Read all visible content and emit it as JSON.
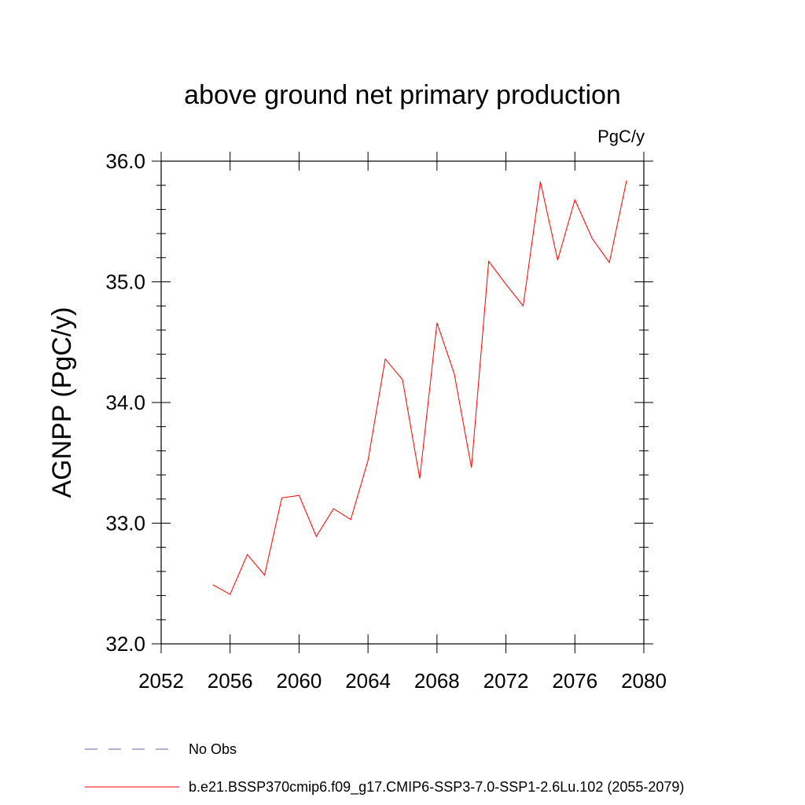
{
  "chart_data": {
    "type": "line",
    "title": "above ground net primary production",
    "units": "PgC/y",
    "ylabel": "AGNPP  (PgC/y)",
    "xlabel": "",
    "xlim": [
      2052,
      2080
    ],
    "ylim": [
      32.0,
      36.0
    ],
    "x_ticks": [
      2052,
      2056,
      2060,
      2064,
      2068,
      2072,
      2076,
      2080
    ],
    "x_tick_labels": [
      "2052",
      "2056",
      "2060",
      "2064",
      "2068",
      "2072",
      "2076",
      "2080"
    ],
    "y_ticks": [
      32.0,
      33.0,
      34.0,
      35.0,
      36.0
    ],
    "y_tick_labels": [
      "32.0",
      "33.0",
      "34.0",
      "35.0",
      "36.0"
    ],
    "grid": false,
    "legend_placement": "bottom",
    "legend": [
      {
        "name": "No Obs",
        "color": "#6b5fa8",
        "style": "dashed"
      },
      {
        "name": "b.e21.BSSP370cmip6.f09_g17.CMIP6-SSP3-7.0-SSP1-2.6Lu.102 (2055-2079)",
        "color": "#ff0000",
        "style": "solid"
      }
    ],
    "series": [
      {
        "name": "b.e21.BSSP370cmip6.f09_g17.CMIP6-SSP3-7.0-SSP1-2.6Lu.102 (2055-2079)",
        "color": "#ff0000",
        "x": [
          2055,
          2056,
          2057,
          2058,
          2059,
          2060,
          2061,
          2062,
          2063,
          2064,
          2065,
          2066,
          2067,
          2068,
          2069,
          2070,
          2071,
          2072,
          2073,
          2074,
          2075,
          2076,
          2077,
          2078,
          2079
        ],
        "y": [
          32.49,
          32.41,
          32.74,
          32.57,
          33.21,
          33.23,
          32.89,
          33.12,
          33.03,
          33.52,
          34.36,
          34.19,
          33.37,
          34.66,
          34.24,
          33.46,
          35.17,
          34.98,
          34.8,
          35.83,
          35.18,
          35.68,
          35.36,
          35.16,
          35.84
        ]
      }
    ]
  }
}
